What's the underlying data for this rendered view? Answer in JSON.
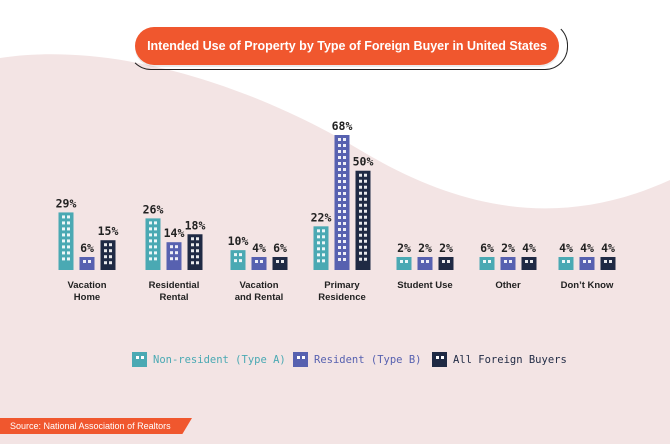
{
  "colors": {
    "background_wave": "#f3e4e4",
    "accent": "#f0572e",
    "non_resident": "#4aa9b3",
    "resident": "#5761b0",
    "all_buyers": "#1f2a44"
  },
  "chart_data": {
    "type": "bar",
    "title": "Intended Use of Property by Type of Foreign Buyer in United States",
    "categories": [
      [
        "Vacation",
        "Home"
      ],
      [
        "Residential",
        "Rental"
      ],
      [
        "Vacation",
        "and Rental"
      ],
      [
        "Primary",
        "Residence"
      ],
      [
        "Student Use"
      ],
      [
        "Other"
      ],
      [
        "Don’t Know"
      ]
    ],
    "series": [
      {
        "name": "Non-resident (Type A)",
        "values": [
          29,
          26,
          10,
          22,
          2,
          6,
          4
        ],
        "labels": [
          "29%",
          "26%",
          "10%",
          "22%",
          "2%",
          "6%",
          "4%"
        ]
      },
      {
        "name": "Resident (Type B)",
        "values": [
          6,
          14,
          4,
          68,
          2,
          2,
          4
        ],
        "labels": [
          "6%",
          "14%",
          "4%",
          "68%",
          "2%",
          "2%",
          "4%"
        ]
      },
      {
        "name": "All Foreign Buyers",
        "values": [
          15,
          18,
          6,
          50,
          2,
          4,
          4
        ],
        "labels": [
          "15%",
          "18%",
          "6%",
          "50%",
          "2%",
          "4%",
          "4%"
        ]
      }
    ],
    "ylim": [
      0,
      68
    ],
    "legend_position": "bottom",
    "grid": false
  },
  "source": "Source: National Association of Realtors"
}
